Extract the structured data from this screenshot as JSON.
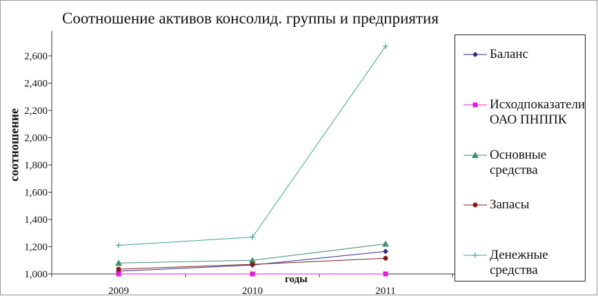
{
  "chart_data": {
    "type": "line",
    "title": "Соотношение активов консолид. группы и предприятия",
    "xlabel": "годы",
    "ylabel": "соотношение",
    "categories": [
      "2009",
      "2010",
      "2011"
    ],
    "ylim": [
      1.0,
      2.7
    ],
    "yticks": [
      1.0,
      1.2,
      1.4,
      1.6,
      1.8,
      2.0,
      2.2,
      2.4,
      2.6
    ],
    "ytick_labels": [
      "1,000",
      "1,200",
      "1,400",
      "1,600",
      "1,800",
      "2,000",
      "2,200",
      "2,400",
      "2,600"
    ],
    "legend_position": "right",
    "series": [
      {
        "name": "Баланс",
        "name_lines": [
          "Баланс"
        ],
        "values": [
          1.02,
          1.065,
          1.165
        ],
        "color": "#2b2b8a",
        "marker": "diamond"
      },
      {
        "name": "Исходпоказатели ОАО ПНППК",
        "name_lines": [
          "Исходпоказатели",
          "ОАО ПНППК"
        ],
        "values": [
          1.0,
          1.0,
          1.0
        ],
        "color": "#e81ad8",
        "marker": "square"
      },
      {
        "name": "Основные средства",
        "name_lines": [
          "Основные",
          "средства"
        ],
        "values": [
          1.08,
          1.1,
          1.22
        ],
        "color": "#3f8f6e",
        "marker": "triangle"
      },
      {
        "name": "Запасы",
        "name_lines": [
          "Запасы"
        ],
        "values": [
          1.035,
          1.07,
          1.115
        ],
        "color": "#8a1a1a",
        "marker": "circle"
      },
      {
        "name": "Денежные средства",
        "name_lines": [
          "Денежные",
          "средства"
        ],
        "values": [
          1.21,
          1.27,
          2.67
        ],
        "color": "#3aa58a",
        "marker": "plus"
      }
    ]
  }
}
